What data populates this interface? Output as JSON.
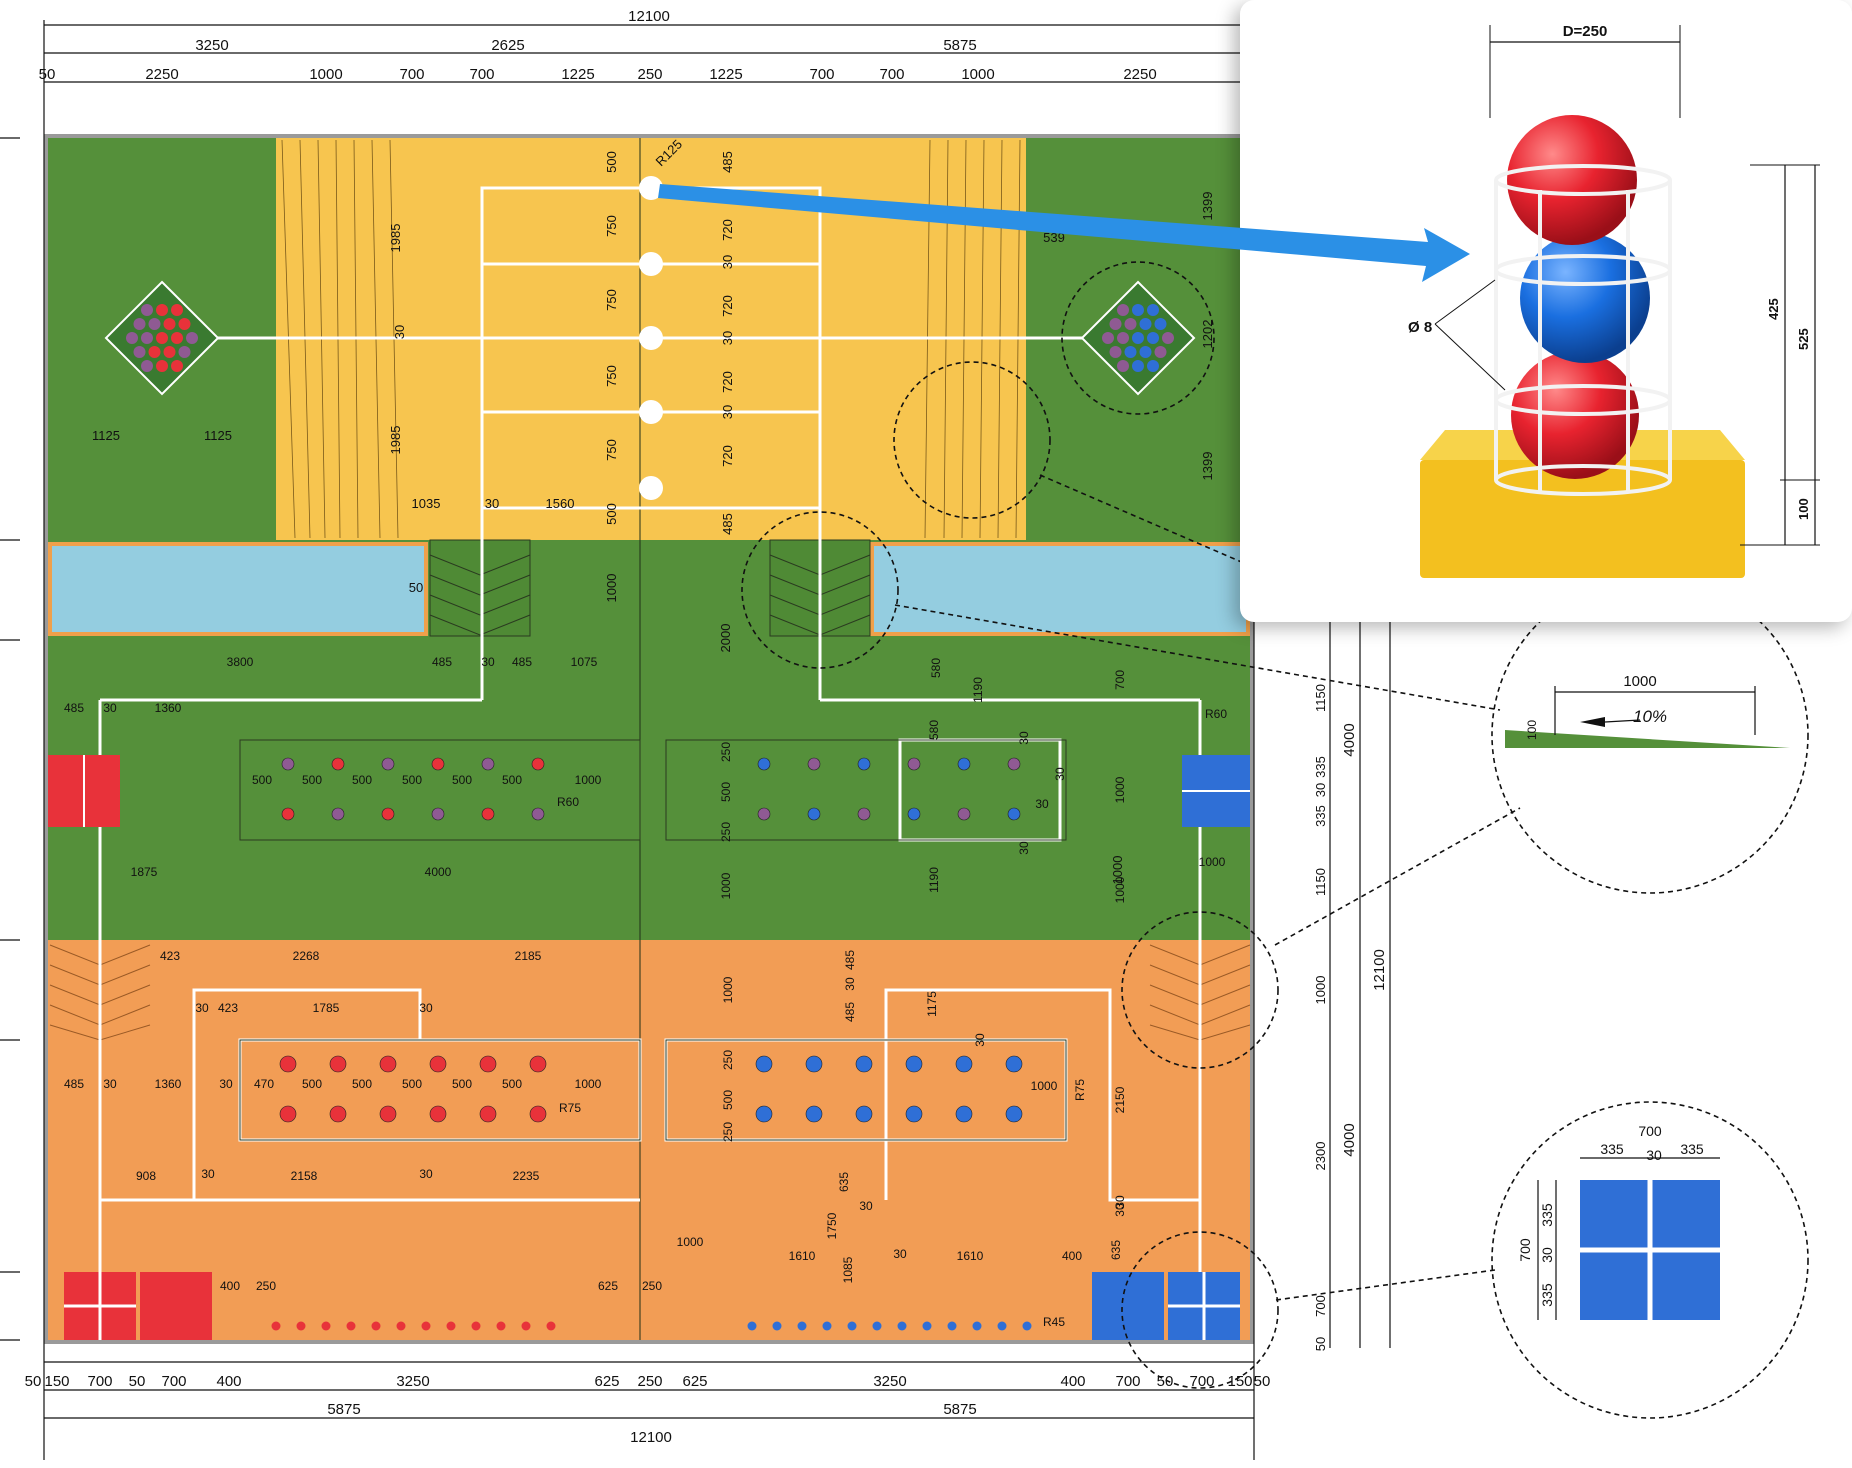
{
  "colors": {
    "green": "#55903a",
    "yellow": "#f7c54f",
    "orange": "#f29d55",
    "water": "#94cde0",
    "red": "#e8323a",
    "blue": "#2f6fd6",
    "purple": "#8f5a93",
    "arrow": "#2b90e6"
  },
  "top_dims": {
    "row1": [
      "12100"
    ],
    "row2": [
      "3250",
      "2625",
      "5875"
    ],
    "row3": [
      "50",
      "2250",
      "1000",
      "700",
      "700",
      "1225",
      "250",
      "1225",
      "700",
      "700",
      "1000",
      "2250"
    ]
  },
  "bottom_dims": {
    "row1": [
      "50",
      "150",
      "700",
      "50",
      "700",
      "400",
      "3250",
      "625",
      "250",
      "625",
      "3250",
      "400",
      "700",
      "50",
      "700",
      "150",
      "50"
    ],
    "row2": [
      "5875",
      "5875"
    ],
    "row3": [
      "12100"
    ]
  },
  "right_dims": {
    "outer": "12100",
    "mid": [
      "4000",
      "4000"
    ],
    "inner": [
      "1150",
      "335",
      "30",
      "335",
      "1150",
      "1000",
      "2300",
      "700",
      "50"
    ]
  },
  "plan_labels": {
    "top_yellow": [
      "500",
      "750",
      "750",
      "750",
      "750",
      "500",
      "485",
      "720",
      "30",
      "720",
      "30",
      "720",
      "30",
      "720",
      "485",
      "R125",
      "1985",
      "30",
      "1985",
      "1035",
      "30",
      "1560",
      "1399",
      "539",
      "1202",
      "1399",
      "1125",
      "1125"
    ],
    "water_row": [
      "50",
      "1000",
      "2000",
      "1000"
    ],
    "green_row": [
      "3800",
      "485",
      "30",
      "485",
      "1075",
      "485",
      "30",
      "1360",
      "500",
      "500",
      "500",
      "500",
      "500",
      "500",
      "1000",
      "R60",
      "1875",
      "4000",
      "250",
      "500",
      "250",
      "1000",
      "580",
      "580",
      "1190",
      "1190",
      "30",
      "30",
      "30",
      "30",
      "R60",
      "700",
      "1000",
      "1000",
      "1000",
      "30"
    ],
    "orange_row": [
      "423",
      "2268",
      "2185",
      "30",
      "423",
      "1785",
      "30",
      "485",
      "30",
      "1360",
      "30",
      "470",
      "500",
      "500",
      "500",
      "500",
      "500",
      "1000",
      "R75",
      "908",
      "30",
      "2158",
      "30",
      "2235",
      "1000",
      "250",
      "500",
      "250",
      "485",
      "30",
      "485",
      "1175",
      "30",
      "1000",
      "R75",
      "2150",
      "30",
      "635",
      "1750",
      "30",
      "1085",
      "635",
      "30",
      "1610",
      "30",
      "1610",
      "400",
      "R45",
      "400",
      "250",
      "625",
      "250",
      "1000"
    ]
  },
  "popup": {
    "title": "D=250",
    "diameter_label": "Ø 8",
    "heights": [
      "425",
      "525",
      "100"
    ]
  },
  "detail_slope": {
    "width": "1000",
    "slope": "10%",
    "height": "100"
  },
  "detail_square": {
    "top_total": "700",
    "top_parts": [
      "335",
      "30",
      "335"
    ],
    "side_total": "700",
    "side_parts": [
      "335",
      "30",
      "335"
    ]
  }
}
